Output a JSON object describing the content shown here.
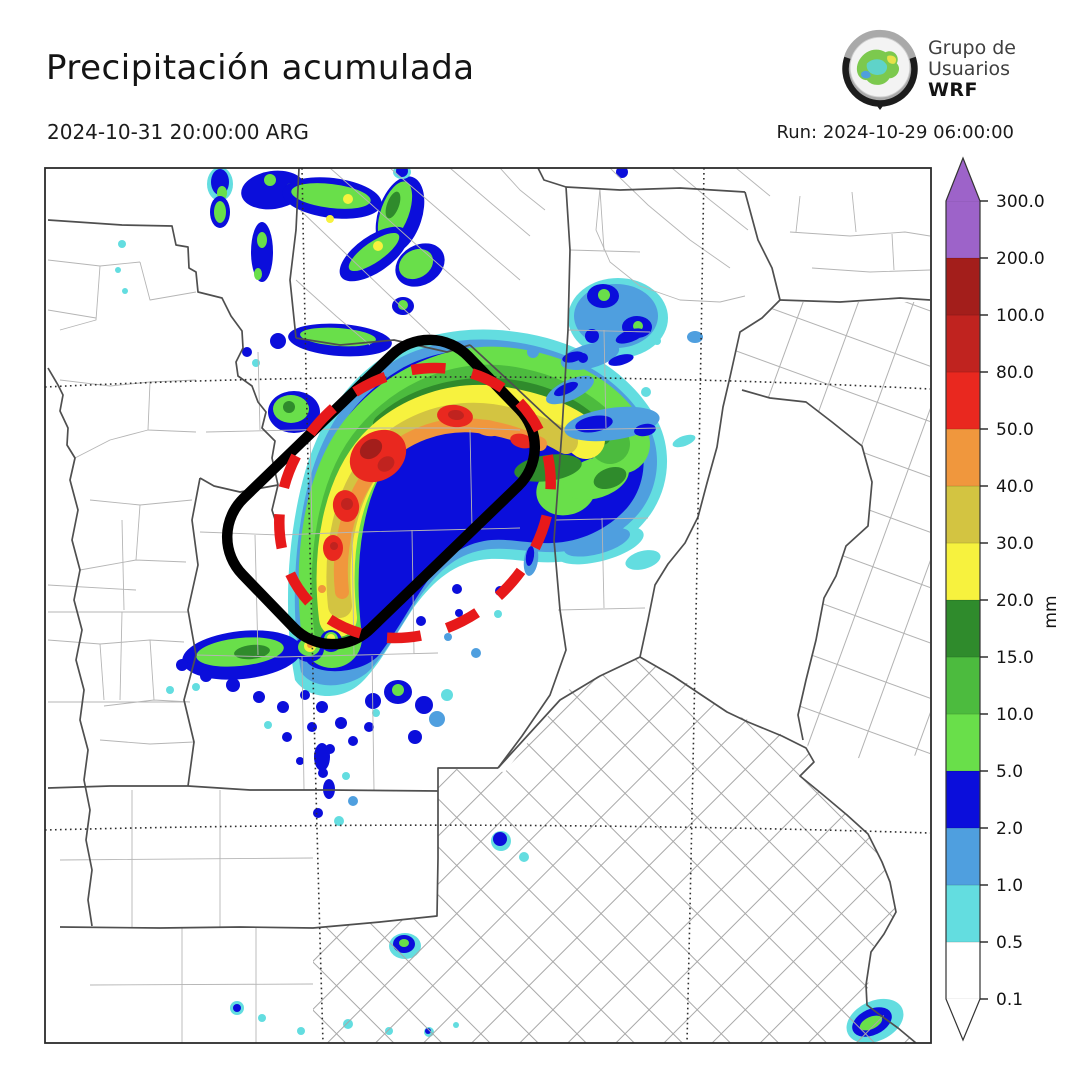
{
  "header": {
    "title": "Precipitación acumulada",
    "valid_time": "2024-10-31 20:00:00 ARG",
    "run_label": "Run: 2024-10-29 06:00:00",
    "logo": {
      "line1": "Grupo de",
      "line2": "Usuarios",
      "line3": "WRF",
      "icon": "globe-weather-logo"
    }
  },
  "colorbar": {
    "unit": "mm",
    "tick_labels": [
      "0.1",
      "0.5",
      "1.0",
      "2.0",
      "5.0",
      "10.0",
      "15.0",
      "20.0",
      "30.0",
      "40.0",
      "50.0",
      "80.0",
      "100.0",
      "200.0",
      "300.0"
    ],
    "segment_colors_bottom_to_top": [
      "#ffffff",
      "#63dde0",
      "#4f9fdf",
      "#0b0edb",
      "#69df4a",
      "#4cbb3e",
      "#2f8b2c",
      "#f7f23e",
      "#d3c441",
      "#f0973d",
      "#e9281f",
      "#c0231f",
      "#a31e1b",
      "#9d63c9"
    ],
    "over_color": "#9d63c9",
    "under_color": "#ffffff"
  },
  "map": {
    "frame_color": "#2b2b2b",
    "province_line_color": "#4f4f4f",
    "department_line_color": "#b5b5b5",
    "graticule_color": "#2e2e2e",
    "annotations": {
      "highlight_box_color": "#000000",
      "dashed_ellipse_color": "#e7191a"
    }
  }
}
